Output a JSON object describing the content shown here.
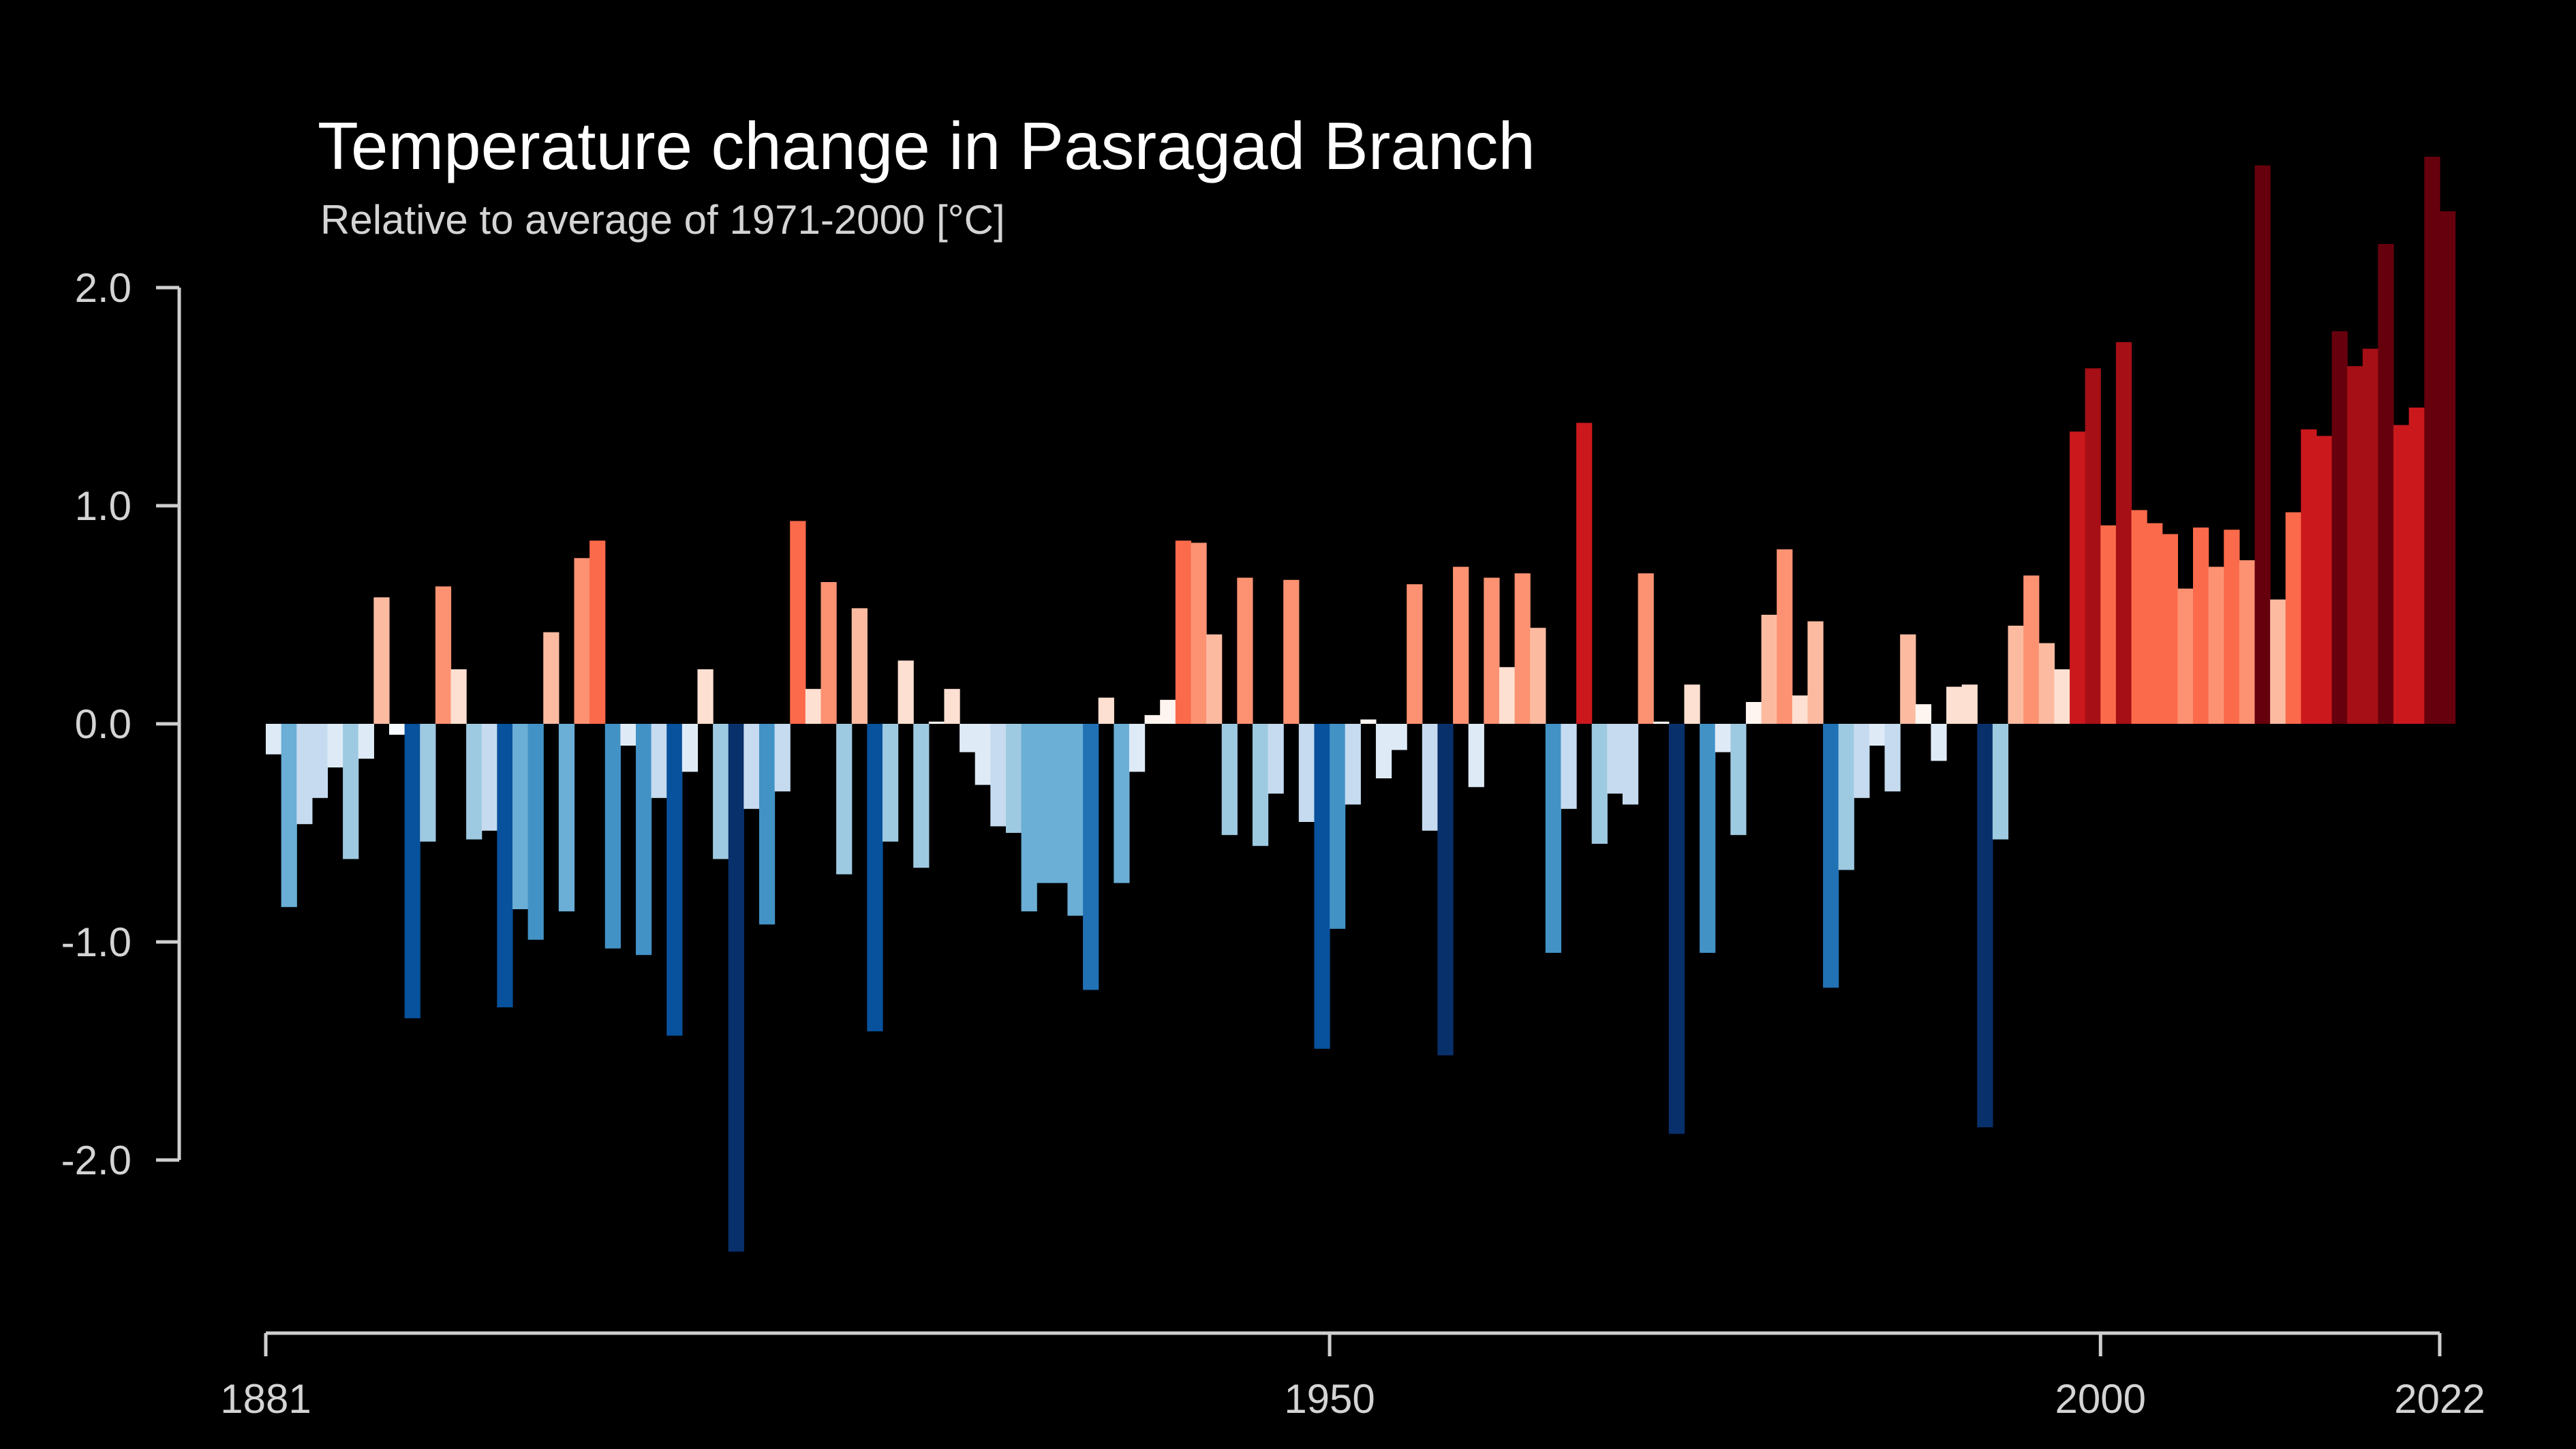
{
  "chart_data": {
    "type": "bar",
    "title": "Temperature change in Pasragad Branch",
    "subtitle": "Relative to average of 1971-2000  [°C]",
    "xlabel": "",
    "ylabel": "",
    "x_start": 1881,
    "x_end": 2022,
    "xlim": [
      1881,
      2022
    ],
    "ylim": [
      -2.5,
      2.7
    ],
    "y_ticks": [
      {
        "value": 2.0,
        "label": "2.0"
      },
      {
        "value": 1.0,
        "label": "1.0"
      },
      {
        "value": 0.0,
        "label": "0.0"
      },
      {
        "value": -1.0,
        "label": "-1.0"
      },
      {
        "value": -2.0,
        "label": "-2.0"
      }
    ],
    "x_ticks": [
      {
        "value": 1881,
        "label": "1881"
      },
      {
        "value": 1950,
        "label": "1950"
      },
      {
        "value": 2000,
        "label": "2000"
      },
      {
        "value": 2022,
        "label": "2022"
      }
    ],
    "grid": false,
    "legend": "none",
    "colors": {
      "background": "#000000",
      "axis": "#cfcfcf",
      "scale_min": -1.6,
      "scale_max": 1.9,
      "neg_ramp": [
        "#f7fbff",
        "#deebf7",
        "#c6dbef",
        "#9ecae1",
        "#6baed6",
        "#4292c6",
        "#2171b5",
        "#08519c",
        "#08306b"
      ],
      "pos_ramp": [
        "#fff5f0",
        "#fee0d2",
        "#fcbba1",
        "#fc9272",
        "#fb6a4a",
        "#ef3b2c",
        "#cb181d",
        "#a50f15",
        "#67000d"
      ]
    },
    "values": [
      -0.14,
      -0.84,
      -0.46,
      -0.34,
      -0.2,
      -0.62,
      -0.16,
      0.58,
      -0.05,
      -1.35,
      -0.54,
      0.63,
      0.25,
      -0.53,
      -0.49,
      -1.3,
      -0.85,
      -0.99,
      0.42,
      -0.86,
      0.76,
      0.84,
      -1.03,
      -0.1,
      -1.06,
      -0.34,
      -1.43,
      -0.22,
      0.25,
      -0.62,
      -2.42,
      -0.39,
      -0.92,
      -0.31,
      0.93,
      0.16,
      0.65,
      -0.69,
      0.53,
      -1.41,
      -0.54,
      0.29,
      -0.66,
      0.01,
      0.16,
      -0.13,
      -0.28,
      -0.47,
      -0.5,
      -0.86,
      -0.73,
      -0.73,
      -0.88,
      -1.22,
      0.12,
      -0.73,
      -0.22,
      0.04,
      0.11,
      0.84,
      0.83,
      0.41,
      -0.51,
      0.67,
      -0.56,
      -0.32,
      0.66,
      -0.45,
      -1.49,
      -0.94,
      -0.37,
      0.02,
      -0.25,
      -0.12,
      0.64,
      -0.49,
      -1.52,
      0.72,
      -0.29,
      0.67,
      0.26,
      0.69,
      0.44,
      -1.05,
      -0.39,
      1.38,
      -0.55,
      -0.32,
      -0.37,
      0.69,
      0.01,
      -1.88,
      0.18,
      -1.05,
      -0.13,
      -0.51,
      0.1,
      0.5,
      0.8,
      0.13,
      0.47,
      -1.21,
      -0.67,
      -0.34,
      -0.1,
      -0.31,
      0.41,
      0.09,
      -0.17,
      0.17,
      0.18,
      -1.85,
      -0.53,
      0.45,
      0.68,
      0.37,
      0.25,
      1.34,
      1.63,
      0.91,
      1.75,
      0.98,
      0.92,
      0.87,
      0.62,
      0.9,
      0.72,
      0.89,
      0.75,
      2.56,
      0.57,
      0.97,
      1.35,
      1.32,
      1.8,
      1.64,
      1.72,
      2.2,
      1.37,
      1.45,
      2.6,
      2.35
    ]
  }
}
